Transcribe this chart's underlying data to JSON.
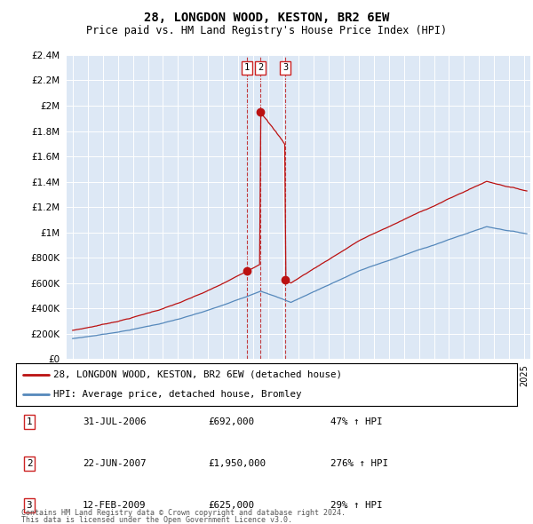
{
  "title": "28, LONGDON WOOD, KESTON, BR2 6EW",
  "subtitle": "Price paid vs. HM Land Registry's House Price Index (HPI)",
  "legend_line1": "28, LONGDON WOOD, KESTON, BR2 6EW (detached house)",
  "legend_line2": "HPI: Average price, detached house, Bromley",
  "footer1": "Contains HM Land Registry data © Crown copyright and database right 2024.",
  "footer2": "This data is licensed under the Open Government Licence v3.0.",
  "table": [
    [
      "1",
      "31-JUL-2006",
      "£692,000",
      "47% ↑ HPI"
    ],
    [
      "2",
      "22-JUN-2007",
      "£1,950,000",
      "276% ↑ HPI"
    ],
    [
      "3",
      "12-FEB-2009",
      "£625,000",
      "29% ↑ HPI"
    ]
  ],
  "sale_dates_num": [
    2006.58,
    2007.47,
    2009.12
  ],
  "sale_prices": [
    692000,
    1950000,
    625000
  ],
  "hpi_color": "#5588bb",
  "price_color": "#bb1111",
  "background_color": "#dde8f5",
  "ylim": [
    0,
    2400000
  ],
  "yticks": [
    0,
    200000,
    400000,
    600000,
    800000,
    1000000,
    1200000,
    1400000,
    1600000,
    1800000,
    2000000,
    2200000,
    2400000
  ],
  "xlim_start": 1994.6,
  "xlim_end": 2025.4
}
